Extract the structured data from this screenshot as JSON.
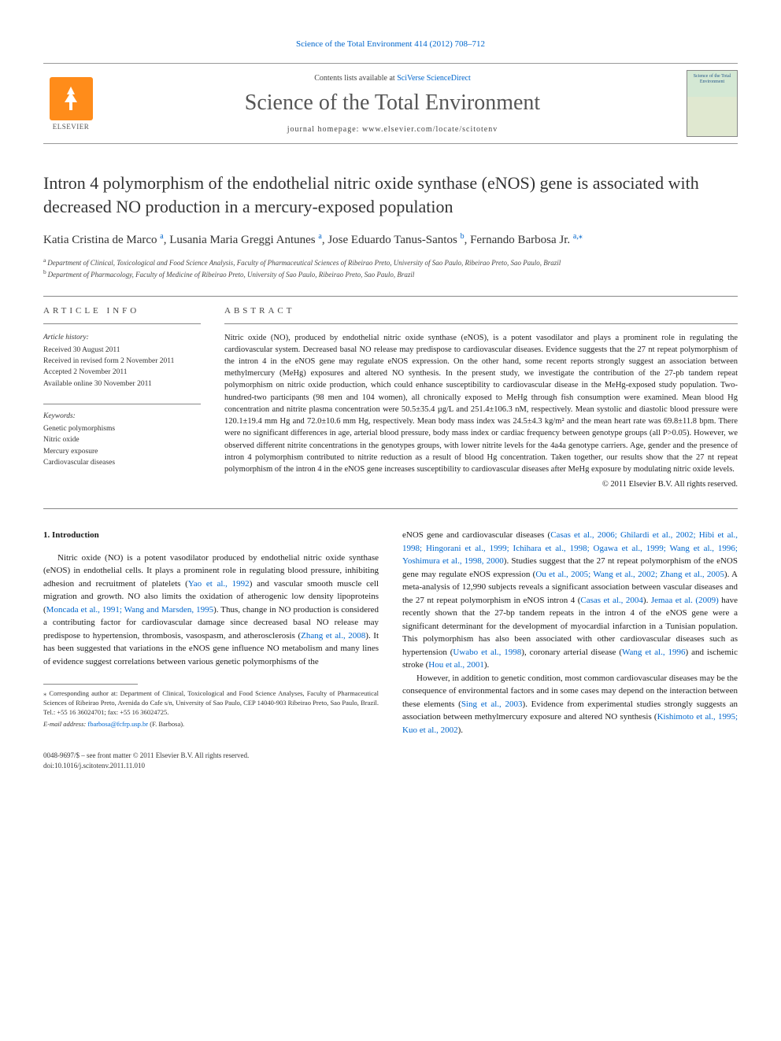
{
  "top_link": "Science of the Total Environment 414 (2012) 708–712",
  "header": {
    "publisher_name": "ELSEVIER",
    "contents_prefix": "Contents lists available at ",
    "contents_link": "SciVerse ScienceDirect",
    "journal_name": "Science of the Total Environment",
    "homepage_prefix": "journal homepage: ",
    "homepage_url": "www.elsevier.com/locate/scitotenv",
    "cover_title": "Science of the Total Environment"
  },
  "title": "Intron 4 polymorphism of the endothelial nitric oxide synthase (eNOS) gene is associated with decreased NO production in a mercury-exposed population",
  "authors": [
    {
      "name": "Katia Cristina de Marco",
      "sup": "a"
    },
    {
      "name": "Lusania Maria Greggi Antunes",
      "sup": "a"
    },
    {
      "name": "Jose Eduardo Tanus-Santos",
      "sup": "b"
    },
    {
      "name": "Fernando Barbosa Jr.",
      "sup": "a,",
      "star": true
    }
  ],
  "affiliations": [
    {
      "sup": "a",
      "text": "Department of Clinical, Toxicological and Food Science Analysis, Faculty of Pharmaceutical Sciences of Ribeirao Preto, University of Sao Paulo, Ribeirao Preto, Sao Paulo, Brazil"
    },
    {
      "sup": "b",
      "text": "Department of Pharmacology, Faculty of Medicine of Ribeirao Preto, University of Sao Paulo, Ribeirao Preto, Sao Paulo, Brazil"
    }
  ],
  "info": {
    "label": "ARTICLE INFO",
    "history_heading": "Article history:",
    "history": [
      "Received 30 August 2011",
      "Received in revised form 2 November 2011",
      "Accepted 2 November 2011",
      "Available online 30 November 2011"
    ],
    "keywords_heading": "Keywords:",
    "keywords": [
      "Genetic polymorphisms",
      "Nitric oxide",
      "Mercury exposure",
      "Cardiovascular diseases"
    ]
  },
  "abstract": {
    "label": "ABSTRACT",
    "text": "Nitric oxide (NO), produced by endothelial nitric oxide synthase (eNOS), is a potent vasodilator and plays a prominent role in regulating the cardiovascular system. Decreased basal NO release may predispose to cardiovascular diseases. Evidence suggests that the 27 nt repeat polymorphism of the intron 4 in the eNOS gene may regulate eNOS expression. On the other hand, some recent reports strongly suggest an association between methylmercury (MeHg) exposures and altered NO synthesis. In the present study, we investigate the contribution of the 27-pb tandem repeat polymorphism on nitric oxide production, which could enhance susceptibility to cardiovascular disease in the MeHg-exposed study population. Two-hundred-two participants (98 men and 104 women), all chronically exposed to MeHg through fish consumption were examined. Mean blood Hg concentration and nitrite plasma concentration were 50.5±35.4 µg/L and 251.4±106.3 nM, respectively. Mean systolic and diastolic blood pressure were 120.1±19.4 mm Hg and 72.0±10.6 mm Hg, respectively. Mean body mass index was 24.5±4.3 kg/m² and the mean heart rate was 69.8±11.8 bpm. There were no significant differences in age, arterial blood pressure, body mass index or cardiac frequency between genotype groups (all P>0.05). However, we observed different nitrite concentrations in the genotypes groups, with lower nitrite levels for the 4a4a genotype carriers. Age, gender and the presence of intron 4 polymorphism contributed to nitrite reduction as a result of blood Hg concentration. Taken together, our results show that the 27 nt repeat polymorphism of the intron 4 in the eNOS gene increases susceptibility to cardiovascular diseases after MeHg exposure by modulating nitric oxide levels.",
    "copyright": "© 2011 Elsevier B.V. All rights reserved."
  },
  "body": {
    "heading": "1. Introduction",
    "col1_p1_a": "Nitric oxide (NO) is a potent vasodilator produced by endothelial nitric oxide synthase (eNOS) in endothelial cells. It plays a prominent role in regulating blood pressure, inhibiting adhesion and recruitment of platelets (",
    "col1_p1_ref1": "Yao et al., 1992",
    "col1_p1_b": ") and vascular smooth muscle cell migration and growth. NO also limits the oxidation of atherogenic low density lipoproteins (",
    "col1_p1_ref2": "Moncada et al., 1991; Wang and Marsden, 1995",
    "col1_p1_c": "). Thus, change in NO production is considered a contributing factor for cardiovascular damage since decreased basal NO release may predispose to hypertension, thrombosis, vasospasm, and atherosclerosis (",
    "col1_p1_ref3": "Zhang et al., 2008",
    "col1_p1_d": "). It has been suggested that variations in the eNOS gene influence NO metabolism and many lines of evidence suggest correlations between various genetic polymorphisms of the",
    "col2_p1_a": "eNOS gene and cardiovascular diseases (",
    "col2_p1_ref1": "Casas et al., 2006; Ghilardi et al., 2002; Hibi et al., 1998; Hingorani et al., 1999; Ichihara et al., 1998; Ogawa et al., 1999; Wang et al., 1996; Yoshimura et al., 1998, 2000",
    "col2_p1_b": "). Studies suggest that the 27 nt repeat polymorphism of the eNOS gene may regulate eNOS expression (",
    "col2_p1_ref2": "Ou et al., 2005; Wang et al., 2002; Zhang et al., 2005",
    "col2_p1_c": "). A meta-analysis of 12,990 subjects reveals a significant association between vascular diseases and the 27 nt repeat polymorphism in eNOS intron 4 (",
    "col2_p1_ref3": "Casas et al., 2004",
    "col2_p1_d": "). ",
    "col2_p1_ref4": "Jemaa et al. (2009)",
    "col2_p1_e": " have recently shown that the 27-bp tandem repeats in the intron 4 of the eNOS gene were a significant determinant for the development of myocardial infarction in a Tunisian population. This polymorphism has also been associated with other cardiovascular diseases such as hypertension (",
    "col2_p1_ref5": "Uwabo et al., 1998",
    "col2_p1_f": "), coronary arterial disease (",
    "col2_p1_ref6": "Wang et al., 1996",
    "col2_p1_g": ") and ischemic stroke (",
    "col2_p1_ref7": "Hou et al., 2001",
    "col2_p1_h": ").",
    "col2_p2_a": "However, in addition to genetic condition, most common cardiovascular diseases may be the consequence of environmental factors and in some cases may depend on the interaction between these elements (",
    "col2_p2_ref1": "Sing et al., 2003",
    "col2_p2_b": "). Evidence from experimental studies strongly suggests an association between methylmercury exposure and altered NO synthesis (",
    "col2_p2_ref2": "Kishimoto et al., 1995; Kuo et al., 2002",
    "col2_p2_c": ")."
  },
  "footnote": {
    "corr_label": "⁎ Corresponding author at:",
    "corr_text": " Department of Clinical, Toxicological and Food Science Analyses, Faculty of Pharmaceutical Sciences of Ribeirao Preto, Avenida do Cafe s/n, University of Sao Paulo, CEP 14040-903 Ribeirao Preto, Sao Paulo, Brazil. Tel.: +55 16 36024701; fax: +55 16 36024725.",
    "email_label": "E-mail address: ",
    "email": "fbarbosa@fcfrp.usp.br",
    "email_suffix": " (F. Barbosa)."
  },
  "bottom": {
    "line1": "0048-9697/$ – see front matter © 2011 Elsevier B.V. All rights reserved.",
    "line2": "doi:10.1016/j.scitotenv.2011.11.010"
  },
  "colors": {
    "link": "#0066cc",
    "text": "#1a1a1a",
    "muted": "#555555",
    "elsevier_orange": "#ff8c1a",
    "background": "#ffffff"
  }
}
